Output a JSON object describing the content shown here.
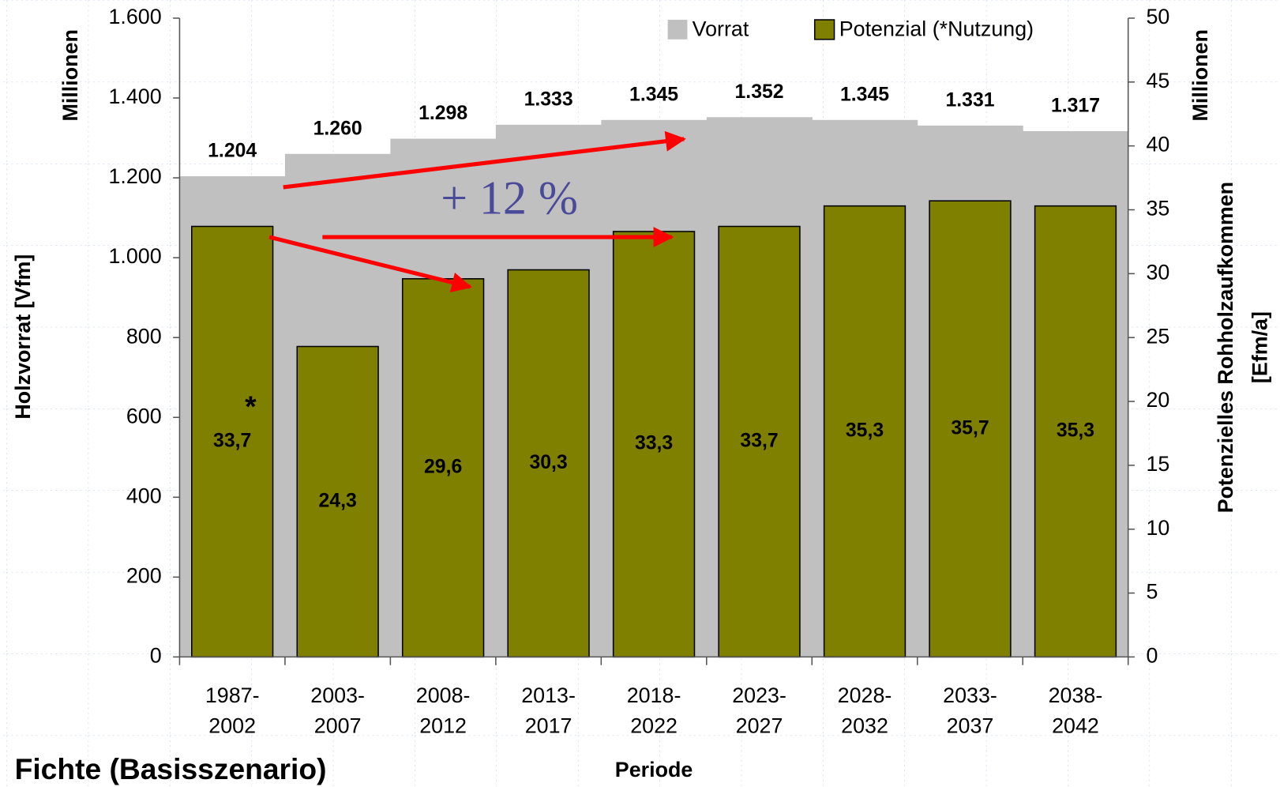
{
  "chart_data": {
    "type": "bar",
    "title": "Fichte (Basisszenario)",
    "xlabel": "Periode",
    "ylabel": "Holzvorrat [Vfm]",
    "yunit": "Millionen",
    "y2label": [
      "Potenzielles Rohholzaufkommen",
      "[Efm/a]"
    ],
    "y2unit": "Millionen",
    "annotations": [
      "+ 12 %",
      "*"
    ],
    "legend": "top-right",
    "categories": [
      [
        "1987-",
        "2002"
      ],
      [
        "2003-",
        "2007"
      ],
      [
        "2008-",
        "2012"
      ],
      [
        "2013-",
        "2017"
      ],
      [
        "2018-",
        "2022"
      ],
      [
        "2023-",
        "2027"
      ],
      [
        "2028-",
        "2032"
      ],
      [
        "2033-",
        "2037"
      ],
      [
        "2038-",
        "2042"
      ]
    ],
    "series": [
      {
        "name": "Vorrat",
        "color": "#c0c0c0",
        "type": "step-area",
        "values": [
          1204,
          1260,
          1298,
          1333,
          1345,
          1352,
          1345,
          1331,
          1317
        ],
        "value_labels": [
          "1.204",
          "1.260",
          "1.298",
          "1.333",
          "1.345",
          "1.352",
          "1.345",
          "1.331",
          "1.317"
        ]
      },
      {
        "name": "Potenzial (*Nutzung)",
        "color": "#808000",
        "type": "bar",
        "axis": "y2",
        "values": [
          33.7,
          24.3,
          29.6,
          30.3,
          33.3,
          33.7,
          35.3,
          35.7,
          35.3
        ],
        "value_labels": [
          "33,7",
          "24,3",
          "29,6",
          "30,3",
          "33,3",
          "33,7",
          "35,3",
          "35,7",
          "35,3"
        ]
      }
    ],
    "ylim": [
      0,
      1600
    ],
    "yticks": [
      0,
      200,
      400,
      600,
      800,
      {
        "value": 1000,
        "label": "1.000"
      },
      {
        "value": 1200,
        "label": "1.200"
      },
      {
        "value": 1400,
        "label": "1.400"
      },
      {
        "value": 1600,
        "label": "1.600"
      }
    ],
    "y2lim": [
      0,
      50
    ],
    "y2ticks": [
      0,
      5,
      10,
      15,
      20,
      25,
      30,
      35,
      40,
      45,
      50
    ]
  }
}
